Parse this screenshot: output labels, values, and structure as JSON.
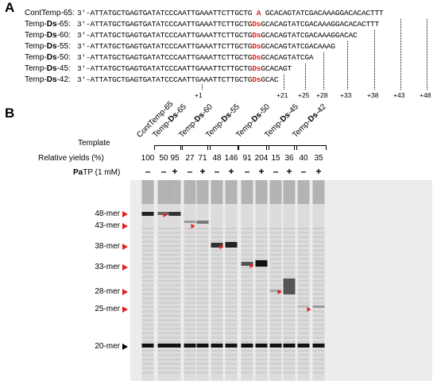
{
  "panel_a": {
    "label": "A",
    "templates": [
      {
        "name": "ContTemp-65:",
        "bold_part": "",
        "pre": "3'-ATTATGCTGAGTGATATCCCAATTGAAATTCTTGCTG ",
        "mark": "A",
        "post": " GCACAGTATCGACAAAGGACACACTTT"
      },
      {
        "name": "Temp-Ds-65:",
        "pre": "3'-ATTATGCTGAGTGATATCCCAATTGAAATTCTTGCTG",
        "mark": "Ds",
        "post": "GCACAGTATCGACAAAGGACACACTTT"
      },
      {
        "name": "Temp-Ds-60:",
        "pre": "3'-ATTATGCTGAGTGATATCCCAATTGAAATTCTTGCTG",
        "mark": "Ds",
        "post": "GCACAGTATCGACAAAGGACAC"
      },
      {
        "name": "Temp-Ds-55:",
        "pre": "3'-ATTATGCTGAGTGATATCCCAATTGAAATTCTTGCTG",
        "mark": "Ds",
        "post": "GCACAGTATCGACAAAG"
      },
      {
        "name": "Temp-Ds-50:",
        "pre": "3'-ATTATGCTGAGTGATATCCCAATTGAAATTCTTGCTG",
        "mark": "Ds",
        "post": "GCACAGTATCGA"
      },
      {
        "name": "Temp-Ds-45:",
        "pre": "3'-ATTATGCTGAGTGATATCCCAATTGAAATTCTTGCTG",
        "mark": "Ds",
        "post": "GCACAGT"
      },
      {
        "name": "Temp-Ds-42:",
        "pre": "3'-ATTATGCTGAGTGATATCCCAATTGAAATTCTTGCTG",
        "mark": "Ds",
        "post": "GCAC"
      }
    ],
    "positions": [
      "+1",
      "+21",
      "+25",
      "+28",
      "+33",
      "+38",
      "+43",
      "+48"
    ]
  },
  "panel_b": {
    "label": "B",
    "row_template": "Template",
    "row_yields": "Relative yields (%)",
    "row_patp_bold": "Pa",
    "row_patp_rest": "TP (1 mM)",
    "lane_headers": [
      "ContTemp-65",
      "Temp-Ds-65",
      "Temp-Ds-60",
      "Temp-Ds-55",
      "Temp-Ds-50",
      "Temp-Ds-45",
      "Temp-Ds-42"
    ],
    "yields": [
      "100",
      "50",
      "95",
      "27",
      "71",
      "48",
      "146",
      "91",
      "204",
      "15",
      "36",
      "40",
      "35"
    ],
    "patp": [
      "–",
      "–",
      "+",
      "–",
      "+",
      "–",
      "+",
      "–",
      "+",
      "–",
      "+",
      "–",
      "+"
    ],
    "markers": [
      "48-mer",
      "43-mer",
      "38-mer",
      "33-mer",
      "28-mer",
      "25-mer",
      "20-mer"
    ]
  },
  "colors": {
    "accent_red": "#e3201b",
    "band_dark": "#111111",
    "gel_bg": "#ececec"
  }
}
